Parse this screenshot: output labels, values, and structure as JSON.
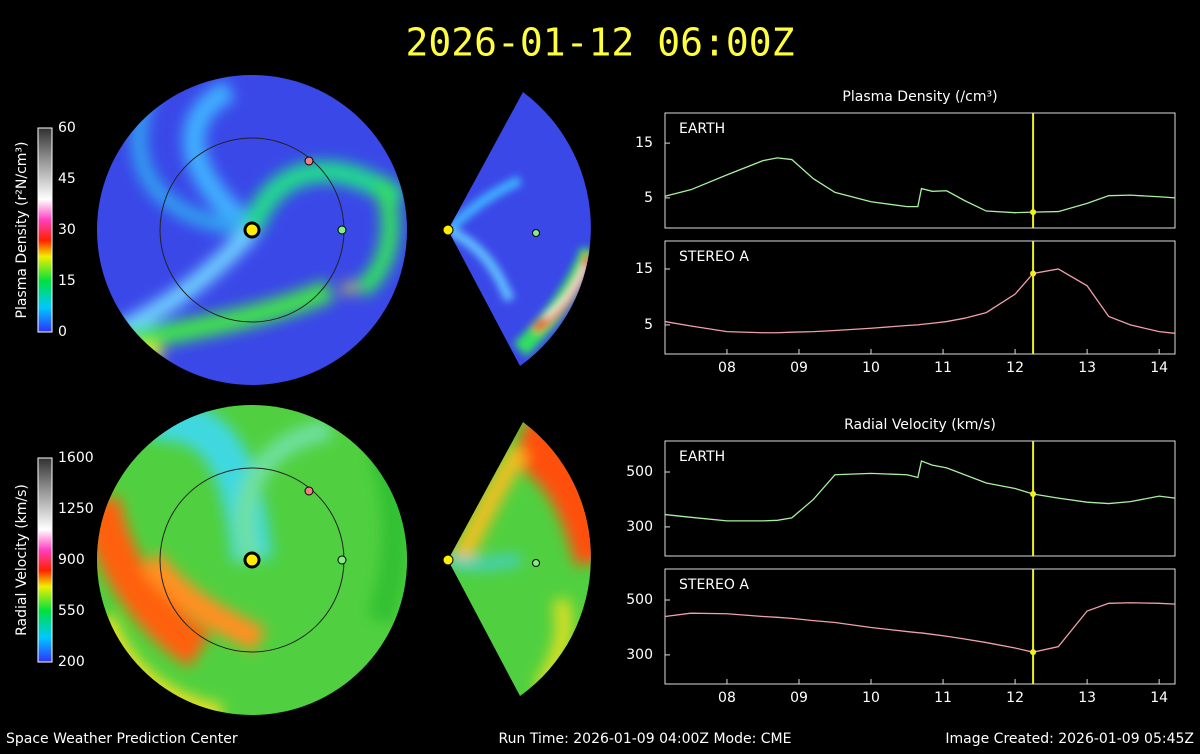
{
  "header": {
    "title": "2026-01-12 06:00Z"
  },
  "footer": {
    "left": "Space Weather Prediction Center",
    "center": "Run Time: 2026-01-09 04:00Z  Mode: CME",
    "right": "Image Created: 2026-01-09 05:45Z"
  },
  "colorbars": [
    {
      "label": "Plasma Density (r²N/cm³)",
      "ticks": [
        0,
        15,
        30,
        45,
        60
      ]
    },
    {
      "label": "Radial Velocity (km/s)",
      "ticks": [
        200,
        550,
        900,
        1250,
        1600
      ]
    }
  ],
  "chart_data": [
    {
      "type": "line",
      "title": "Plasma Density (/cm³)",
      "x": [
        7.14,
        7.5,
        8.0,
        8.5,
        8.7,
        8.9,
        9.2,
        9.5,
        10.0,
        10.5,
        10.65,
        10.7,
        10.85,
        11.05,
        11.3,
        11.6,
        12.0,
        12.25,
        12.6,
        13.0,
        13.3,
        13.6,
        14.0,
        14.22
      ],
      "series": [
        {
          "name": "EARTH",
          "color": "#a8f0a0",
          "values": [
            5.3,
            6.5,
            9.2,
            11.8,
            12.3,
            12.0,
            8.5,
            6.0,
            4.3,
            3.4,
            3.4,
            6.7,
            6.2,
            6.3,
            4.5,
            2.6,
            2.3,
            2.4,
            2.5,
            4.0,
            5.4,
            5.5,
            5.2,
            5.0
          ]
        }
      ],
      "xlim": [
        7.14,
        14.22
      ],
      "ylim": [
        -0.5,
        20.5
      ],
      "yticks": [
        5,
        15
      ],
      "marker_x": 12.25
    },
    {
      "type": "line",
      "x": [
        7.14,
        7.5,
        8.0,
        8.5,
        8.7,
        8.9,
        9.2,
        9.5,
        10.0,
        10.5,
        10.65,
        10.7,
        10.85,
        11.05,
        11.3,
        11.6,
        12.0,
        12.25,
        12.6,
        13.0,
        13.3,
        13.6,
        14.0,
        14.22
      ],
      "series": [
        {
          "name": "STEREO A",
          "color": "#f0a0a8",
          "values": [
            5.6,
            4.8,
            3.8,
            3.6,
            3.6,
            3.7,
            3.8,
            4.0,
            4.4,
            4.9,
            5.0,
            5.1,
            5.3,
            5.6,
            6.2,
            7.2,
            10.5,
            14.2,
            15.0,
            12.0,
            6.5,
            5.0,
            3.8,
            3.5
          ]
        }
      ],
      "xlim": [
        7.14,
        14.22
      ],
      "ylim": [
        -0.2,
        20
      ],
      "yticks": [
        5,
        15
      ],
      "marker_x": 12.25,
      "xticks": [
        {
          "value": 8,
          "label": "08"
        },
        {
          "value": 9,
          "label": "09"
        },
        10,
        11,
        12,
        13,
        14
      ]
    },
    {
      "type": "line",
      "title": "Radial Velocity (km/s)",
      "x": [
        7.14,
        7.5,
        8.0,
        8.5,
        8.7,
        8.9,
        9.2,
        9.5,
        10.0,
        10.5,
        10.65,
        10.7,
        10.85,
        11.05,
        11.3,
        11.6,
        12.0,
        12.25,
        12.6,
        13.0,
        13.3,
        13.6,
        14.0,
        14.22
      ],
      "series": [
        {
          "name": "EARTH",
          "color": "#a8f0a0",
          "values": [
            345,
            335,
            322,
            322,
            324,
            333,
            400,
            490,
            495,
            490,
            480,
            540,
            525,
            515,
            490,
            460,
            440,
            420,
            405,
            390,
            385,
            392,
            412,
            405
          ]
        }
      ],
      "xlim": [
        7.14,
        14.22
      ],
      "ylim": [
        194,
        613
      ],
      "yticks": [
        300,
        500
      ],
      "marker_x": 12.25
    },
    {
      "type": "line",
      "x": [
        7.14,
        7.5,
        8.0,
        8.5,
        8.7,
        8.9,
        9.2,
        9.5,
        10.0,
        10.5,
        10.65,
        10.7,
        10.85,
        11.05,
        11.3,
        11.6,
        12.0,
        12.25,
        12.6,
        13.0,
        13.3,
        13.6,
        14.0,
        14.22
      ],
      "series": [
        {
          "name": "STEREO A",
          "color": "#f0a0a8",
          "values": [
            440,
            452,
            450,
            440,
            437,
            433,
            425,
            418,
            400,
            385,
            381,
            380,
            375,
            368,
            358,
            345,
            325,
            310,
            330,
            460,
            488,
            490,
            488,
            485
          ]
        }
      ],
      "xlim": [
        7.14,
        14.22
      ],
      "ylim": [
        194,
        613
      ],
      "yticks": [
        300,
        500
      ],
      "marker_x": 12.25,
      "xticks": [
        {
          "value": 8,
          "label": "08"
        },
        {
          "value": 9,
          "label": "09"
        },
        10,
        11,
        12,
        13,
        14
      ]
    }
  ]
}
